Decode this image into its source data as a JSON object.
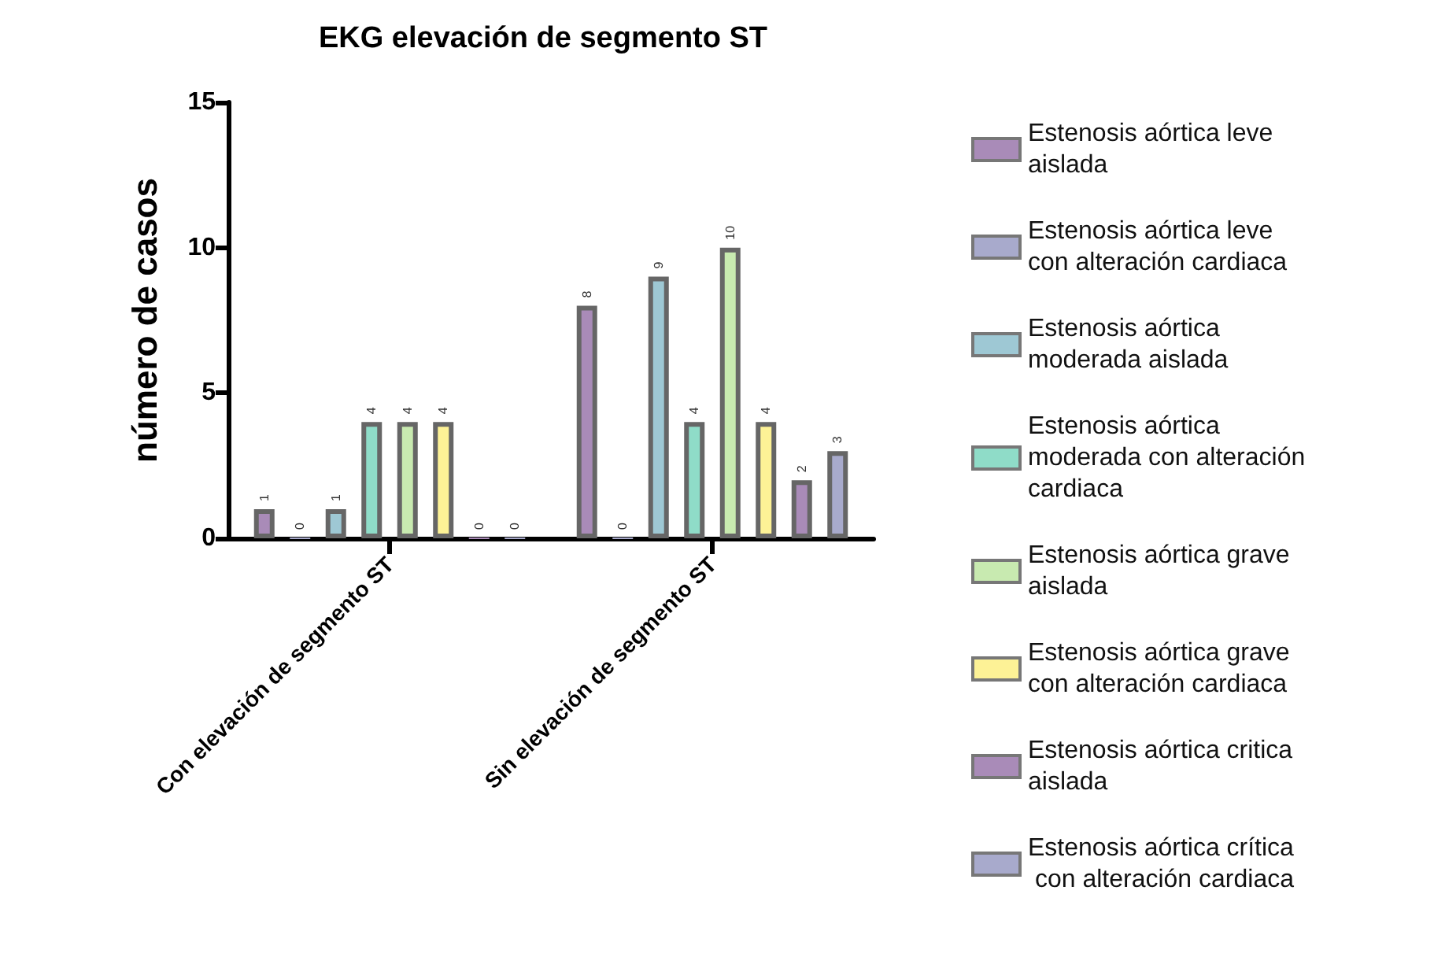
{
  "chart_data": {
    "type": "bar",
    "title": "EKG elevación de segmento ST",
    "ylabel": "número de casos",
    "categories": [
      "Con elevación de segmento ST",
      "Sin elevación de segmento ST"
    ],
    "series": [
      {
        "name": "Estenosis aórtica leve aislada",
        "color": "#a98bb8",
        "values": [
          1,
          8
        ]
      },
      {
        "name": "Estenosis aórtica leve con alteración cardiaca",
        "color": "#a8aacc",
        "values": [
          0,
          0
        ]
      },
      {
        "name": "Estenosis aórtica moderada aislada",
        "color": "#9ec8d4",
        "values": [
          1,
          9
        ]
      },
      {
        "name": "Estenosis aórtica moderada con alteración cardiaca",
        "color": "#8fdcc8",
        "values": [
          4,
          4
        ]
      },
      {
        "name": "Estenosis aórtica grave aislada",
        "color": "#c8eab0",
        "values": [
          4,
          10
        ]
      },
      {
        "name": "Estenosis aórtica grave con alteración cardiaca",
        "color": "#fdf296",
        "values": [
          4,
          4
        ]
      },
      {
        "name": "Estenosis aórtica critica aislada",
        "color": "#a98bb8",
        "values": [
          0,
          2
        ]
      },
      {
        "name": "Estenosis aórtica crítica con alteración cardiaca",
        "color": "#a8aacc",
        "values": [
          0,
          3
        ]
      }
    ],
    "ylim": [
      0,
      15
    ],
    "yticks": [
      0,
      5,
      10,
      15
    ],
    "grid": false,
    "legend": "right",
    "data_labels": true
  }
}
